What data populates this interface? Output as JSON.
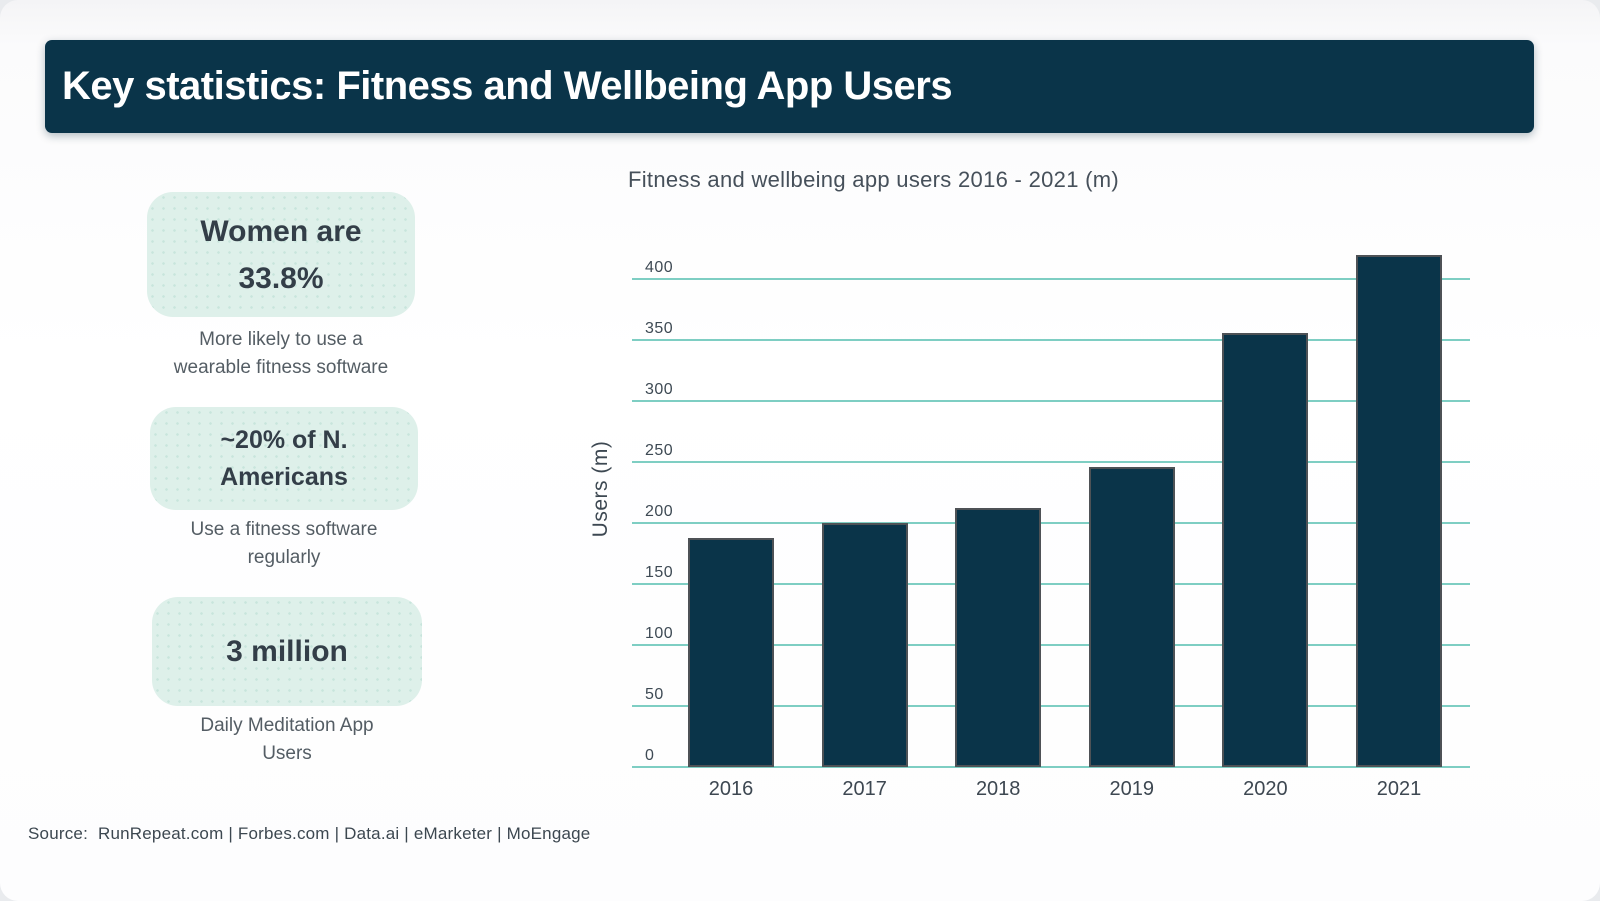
{
  "page": {
    "title": "Key statistics: Fitness and Wellbeing App Users",
    "source_label": "Source:",
    "sources": "RunRepeat.com | Forbes.com | Data.ai | eMarketer | MoEngage",
    "colors": {
      "header_bg": "#0a3449",
      "bar_fill": "#0a3449",
      "gridline_teal": "#7ecec3",
      "card_mint": "#def0ea"
    }
  },
  "stat_cards": [
    {
      "line1": "Women are",
      "line2": "33.8%",
      "caption_line1": "More likely to use a",
      "caption_line2": "wearable fitness software"
    },
    {
      "line1": "~20% of N.",
      "line2": "Americans",
      "caption_line1": "Use a fitness software",
      "caption_line2": "regularly"
    },
    {
      "line1": "3 million",
      "caption_line1": "Daily Meditation App",
      "caption_line2": "Users"
    }
  ],
  "chart_data": {
    "type": "bar",
    "title": "Fitness and wellbeing app users 2016 - 2021 (m)",
    "categories": [
      "2016",
      "2017",
      "2018",
      "2019",
      "2020",
      "2021"
    ],
    "values": [
      188,
      200,
      212,
      246,
      356,
      420
    ],
    "xlabel": "",
    "ylabel": "Users (m)",
    "ylim": [
      0,
      430
    ],
    "yticks": [
      0,
      50,
      100,
      150,
      200,
      250,
      300,
      350,
      400
    ],
    "grid": true,
    "legend": "none",
    "bar_color": "#0a3449",
    "gridline_color": "#7ecec3"
  }
}
